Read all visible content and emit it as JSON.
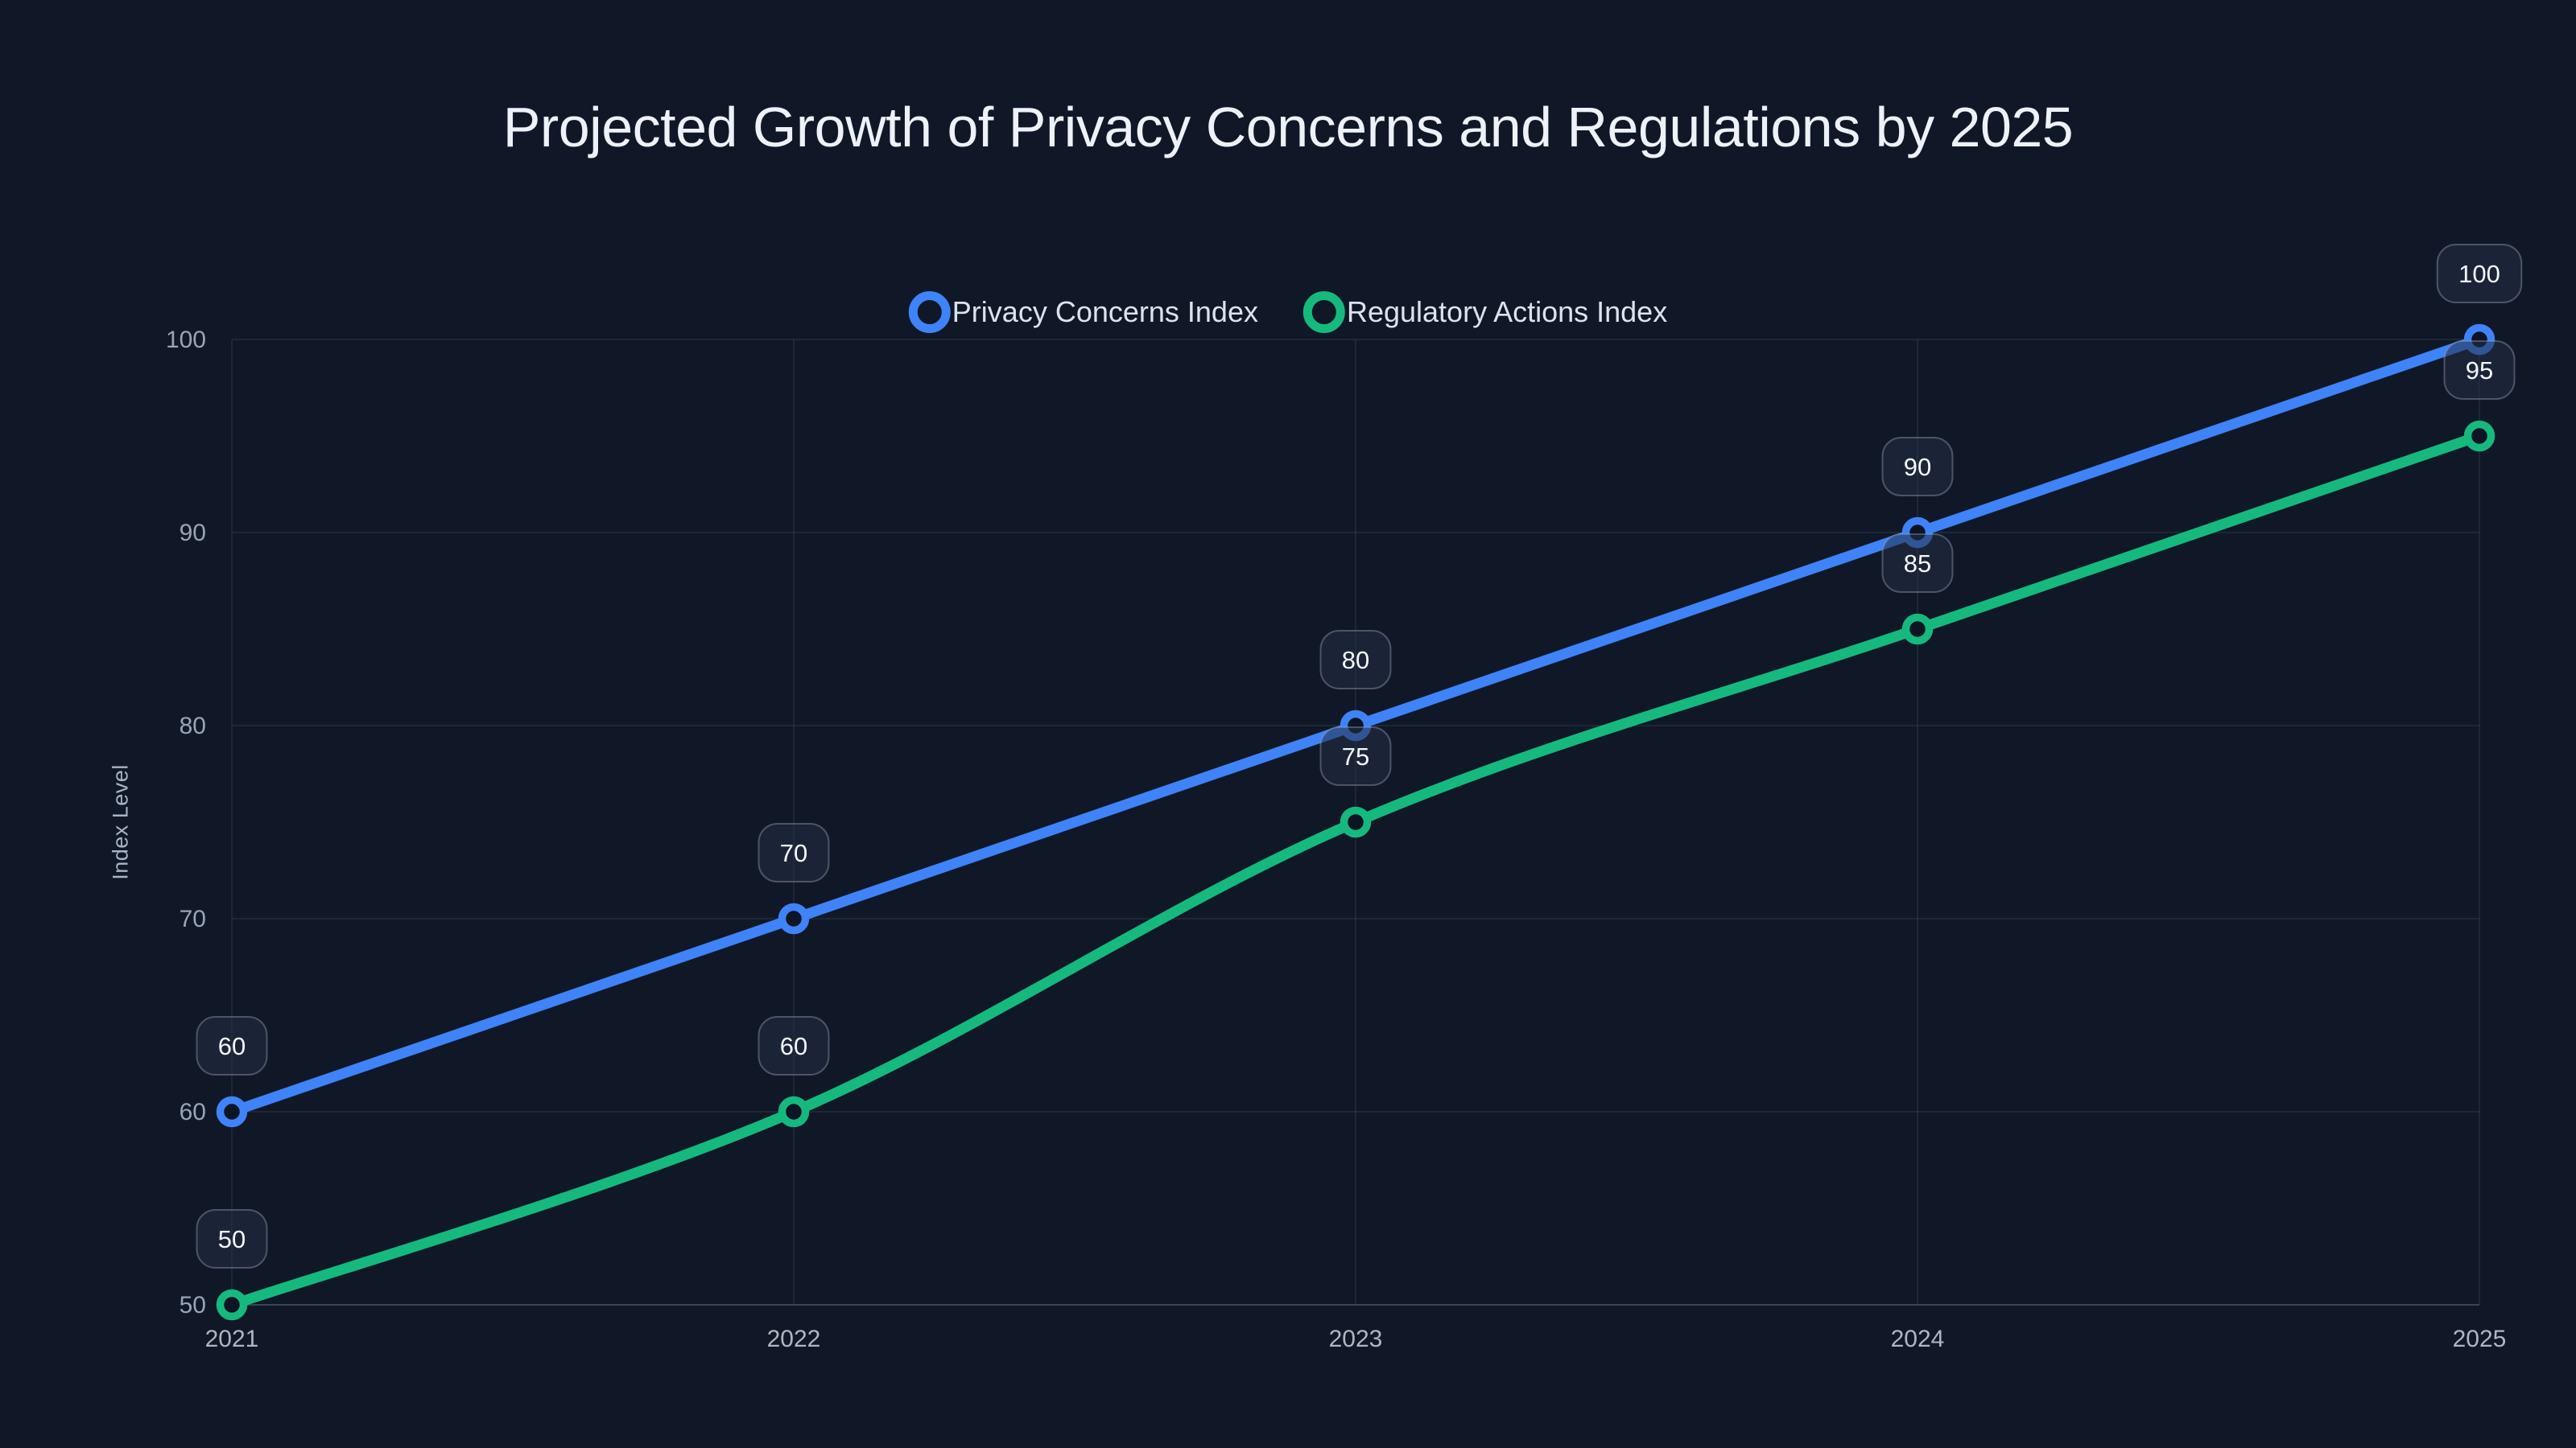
{
  "chart_data": {
    "type": "line",
    "title": "Projected Growth of Privacy Concerns and Regulations by 2025",
    "ylabel": "Index Level",
    "xlabel": "",
    "x": [
      "2021",
      "2022",
      "2023",
      "2024",
      "2025"
    ],
    "series": [
      {
        "name": "Privacy Concerns Index",
        "color": "#3f83f8",
        "values": [
          60,
          70,
          80,
          90,
          100
        ]
      },
      {
        "name": "Regulatory Actions Index",
        "color": "#16b97d",
        "values": [
          50,
          60,
          75,
          85,
          95
        ]
      }
    ],
    "ylim": [
      50,
      100
    ],
    "yticks": [
      50,
      60,
      70,
      80,
      90,
      100
    ],
    "grid": true,
    "legend_position": "top-center",
    "point_labels": "each data point shows its value in a rounded badge above the marker",
    "line_style": "smooth, open circular markers"
  },
  "colors": {
    "background": "#101827",
    "title_text": "#eef2f8",
    "axis_tick_text": "#99a4b6",
    "x_tick_text": "#aeb6c2",
    "legend_text": "#dce3ed",
    "gridline": "rgba(148,163,184,0.15)",
    "baseline": "rgba(148,163,184,0.32)",
    "badge_fill": "rgba(36,48,70,0.55)",
    "badge_border": "rgba(148,163,184,0.42)",
    "badge_text": "#f4f7fa",
    "marker_inner_fill": "#0d1424"
  }
}
